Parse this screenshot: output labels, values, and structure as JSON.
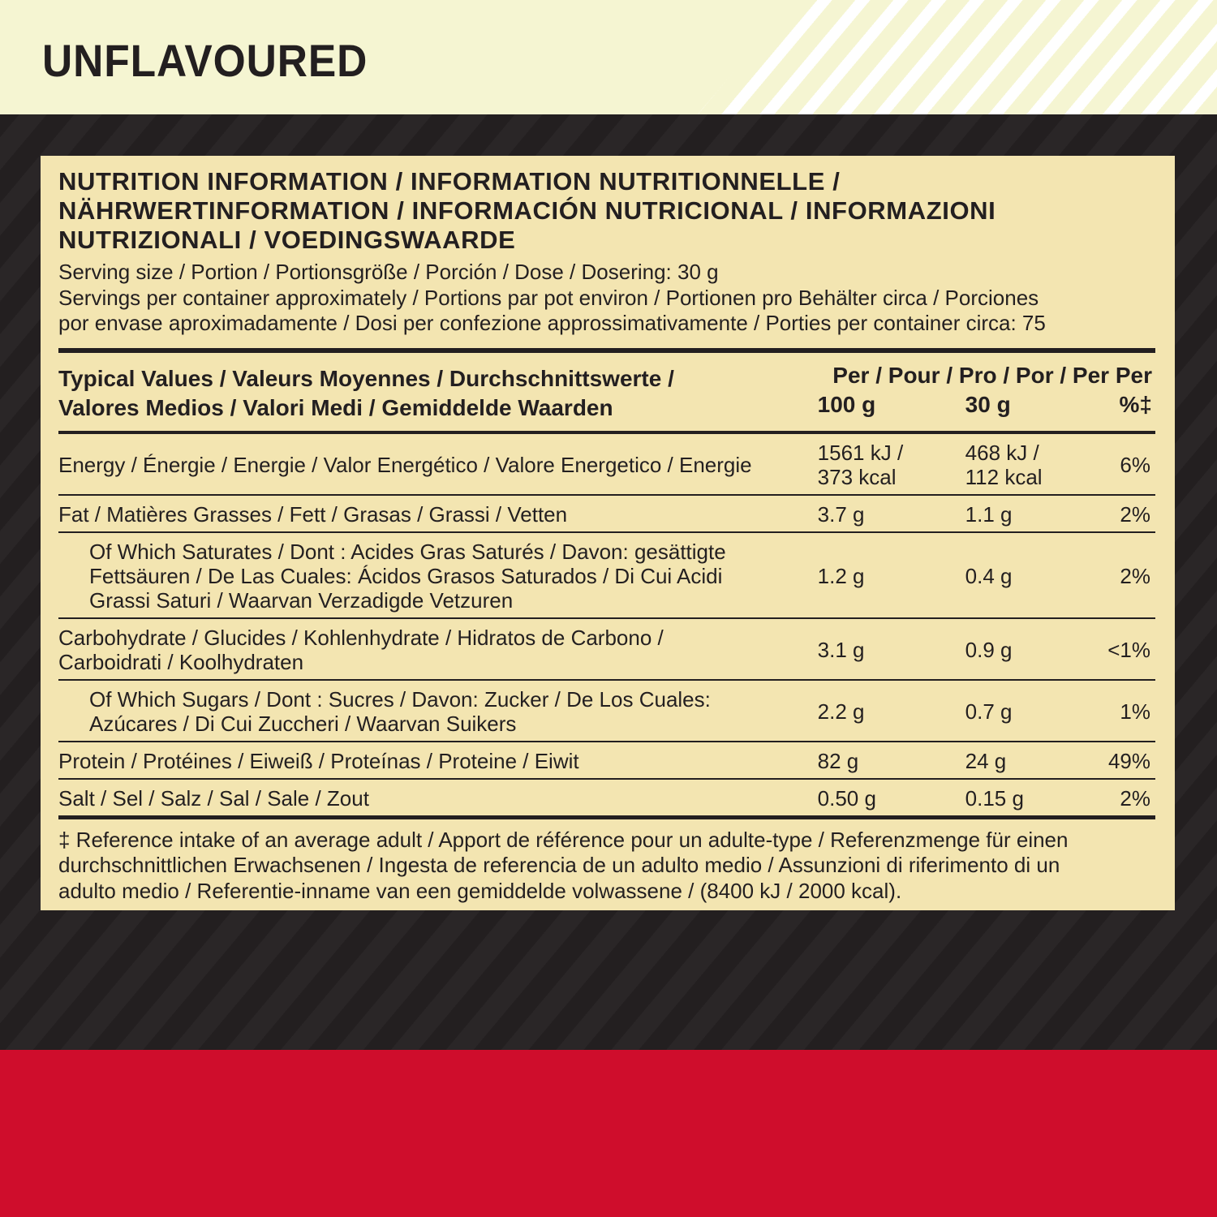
{
  "product": {
    "title": "UNFLAVOURED"
  },
  "colors": {
    "top_band": "#f5f5d2",
    "dark_band": "#231f20",
    "panel": "#f3e5b1",
    "red_band": "#cf0d2c"
  },
  "nutrition": {
    "heading_lines": [
      "NUTRITION INFORMATION / INFORMATION NUTRITIONNELLE /",
      "NÄHRWERTINFORMATION / INFORMACIÓN NUTRICIONAL / INFORMAZIONI",
      "NUTRIZIONALI / VOEDINGSWAARDE"
    ],
    "serving_size": "Serving size / Portion / Portionsgröße / Porción / Dose / Dosering: 30 g",
    "servings_lines": [
      "Servings per container approximately / Portions par pot environ / Portionen pro Behälter circa / Porciones",
      "por envase aproximadamente / Dosi per confezione approssimativamente / Porties per container circa: 75"
    ],
    "header": {
      "label_lines": [
        "Typical Values / Valeurs Moyennes / Durchschnittswerte /",
        "Valores Medios / Valori Medi / Gemiddelde Waarden"
      ],
      "per_line": "Per / Pour / Pro / Por / Per Per",
      "col1": "100 g",
      "col2": "30 g",
      "col3": "%‡"
    },
    "rows": [
      {
        "label_lines": [
          "Energy / Énergie / Energie / Valor Energético / Valore Energetico / Energie"
        ],
        "per100_lines": [
          "1561 kJ /",
          "373 kcal"
        ],
        "per30_lines": [
          "468 kJ /",
          "112 kcal"
        ],
        "ri": "6%"
      },
      {
        "label_lines": [
          "Fat / Matières Grasses / Fett / Grasas / Grassi / Vetten"
        ],
        "per100_lines": [
          "3.7 g"
        ],
        "per30_lines": [
          "1.1 g"
        ],
        "ri": "2%"
      },
      {
        "label_lines": [
          "Of Which Saturates / Dont : Acides Gras Saturés / Davon: gesättigte",
          "Fettsäuren / De Las Cuales: Ácidos Grasos Saturados / Di Cui Acidi",
          "Grassi Saturi / Waarvan Verzadigde Vetzuren"
        ],
        "indent": true,
        "per100_lines": [
          "1.2 g"
        ],
        "per30_lines": [
          "0.4 g"
        ],
        "ri": "2%"
      },
      {
        "label_lines": [
          "Carbohydrate / Glucides / Kohlenhydrate / Hidratos de Carbono /",
          "Carboidrati / Koolhydraten"
        ],
        "per100_lines": [
          "3.1 g"
        ],
        "per30_lines": [
          "0.9 g"
        ],
        "ri": "<1%"
      },
      {
        "label_lines": [
          "Of Which Sugars / Dont : Sucres / Davon: Zucker / De Los Cuales:",
          "Azúcares / Di Cui Zuccheri / Waarvan Suikers"
        ],
        "indent": true,
        "per100_lines": [
          "2.2 g"
        ],
        "per30_lines": [
          "0.7 g"
        ],
        "ri": "1%"
      },
      {
        "label_lines": [
          "Protein / Protéines / Eiweiß / Proteínas / Proteine / Eiwit"
        ],
        "per100_lines": [
          "82 g"
        ],
        "per30_lines": [
          "24 g"
        ],
        "ri": "49%"
      },
      {
        "label_lines": [
          "Salt / Sel / Salz / Sal / Sale / Zout"
        ],
        "per100_lines": [
          "0.50 g"
        ],
        "per30_lines": [
          "0.15 g"
        ],
        "ri": "2%"
      }
    ],
    "footnote_lines": [
      "‡ Reference intake of an average adult / Apport de référence pour un adulte-type / Referenzmenge für einen",
      "durchschnittlichen Erwachsenen / Ingesta de referencia de un adulto medio / Assunzioni di riferimento di un",
      "adulto medio / Referentie-inname van een gemiddelde volwassene / (8400 kJ / 2000 kcal)."
    ]
  }
}
